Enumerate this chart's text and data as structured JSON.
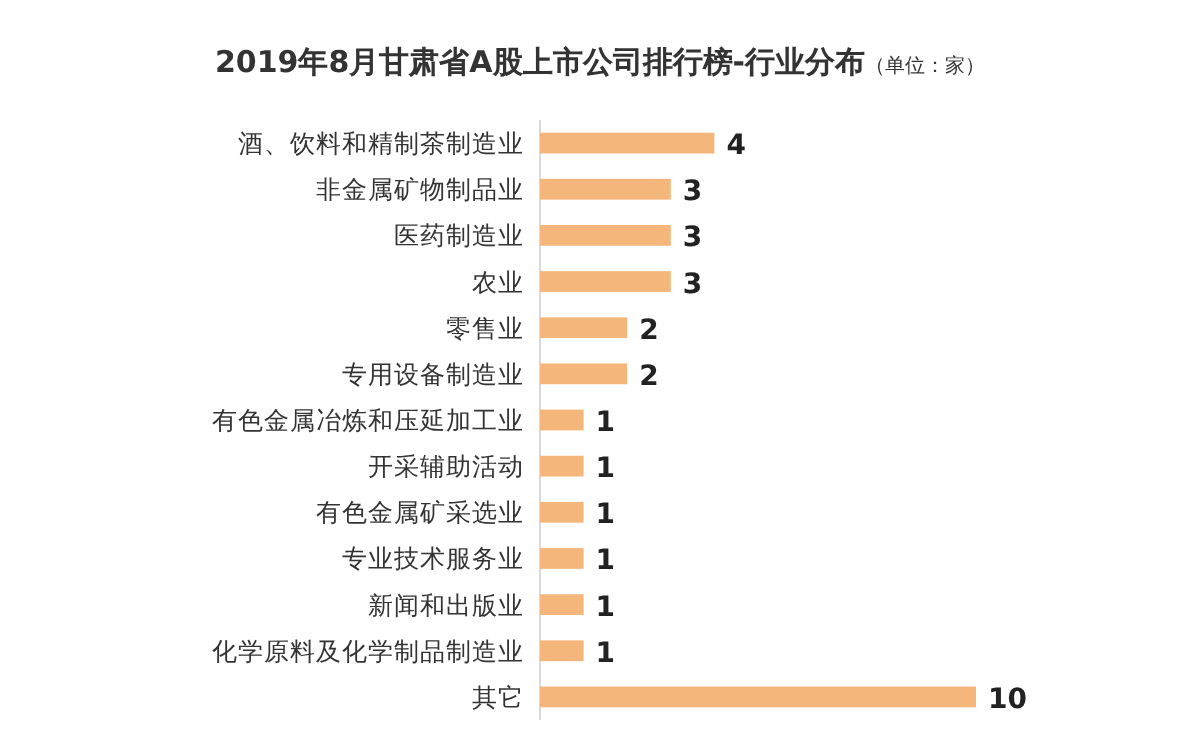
{
  "chart_data": {
    "type": "bar",
    "orientation": "horizontal",
    "title": "2019年8月甘肃省A股上市公司排行榜-行业分布",
    "subtitle": "（单位：家）",
    "categories": [
      "酒、饮料和精制茶制造业",
      "非金属矿物制品业",
      "医药制造业",
      "农业",
      "零售业",
      "专用设备制造业",
      "有色金属冶炼和压延加工业",
      "开采辅助活动",
      "有色金属矿采选业",
      "专业技术服务业",
      "新闻和出版业",
      "化学原料及化学制品制造业",
      "其它"
    ],
    "values": [
      4,
      3,
      3,
      3,
      2,
      2,
      1,
      1,
      1,
      1,
      1,
      1,
      10
    ],
    "color": "#f4b67a",
    "data_labels": true
  }
}
